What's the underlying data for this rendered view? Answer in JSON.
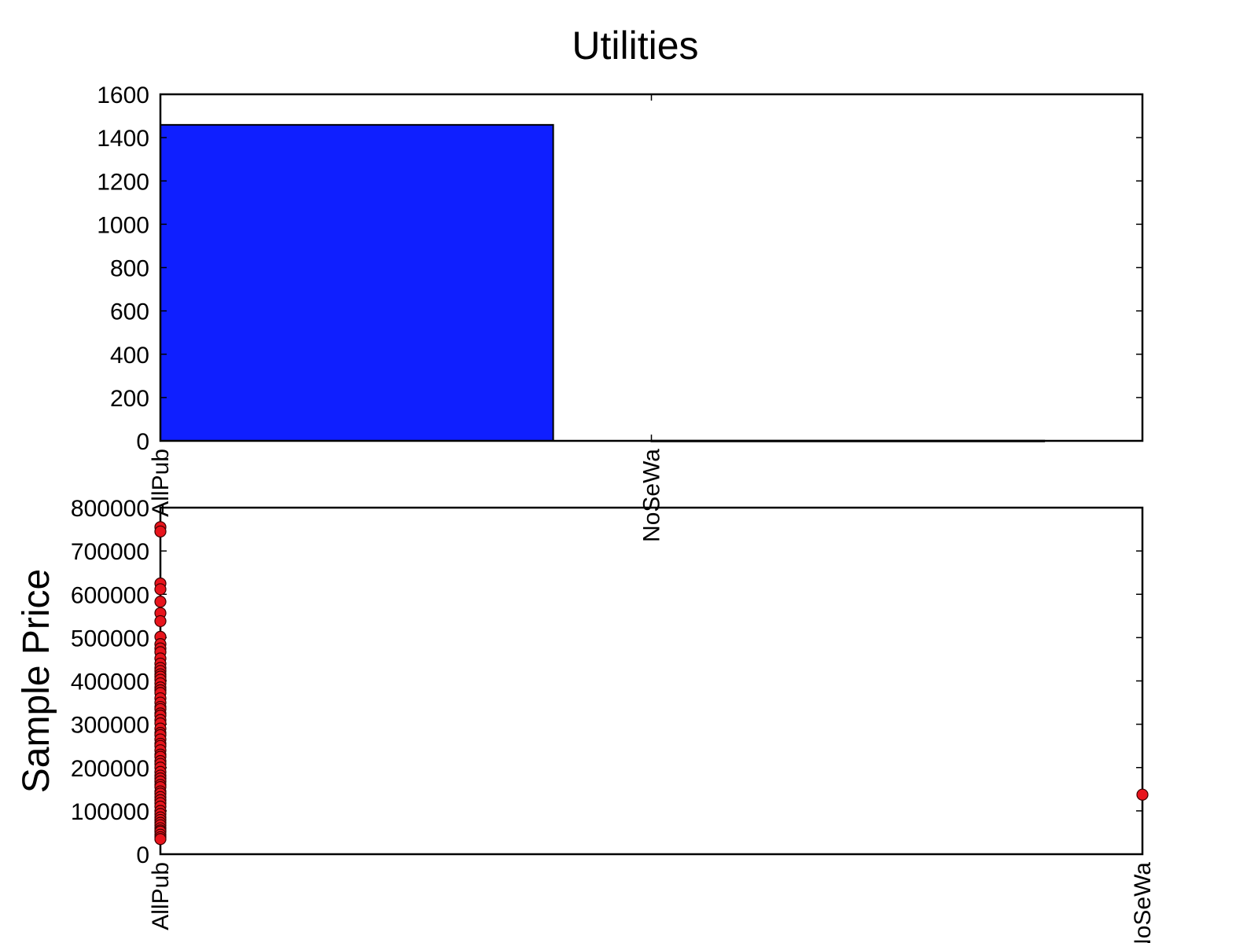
{
  "chart_data": [
    {
      "type": "bar",
      "title": "Utilities",
      "xlabel": "",
      "ylabel": "",
      "categories": [
        "AllPub",
        "NoSeWa"
      ],
      "values": [
        1459,
        1
      ],
      "ylim": [
        0,
        1600
      ],
      "yticks": [
        "0",
        "200",
        "400",
        "600",
        "800",
        "1000",
        "1200",
        "1400",
        "1600"
      ],
      "bar_color": "#0f1fff",
      "grid": false
    },
    {
      "type": "scatter",
      "title": "",
      "xlabel": "",
      "ylabel": "Sample Price",
      "categories": [
        "AllPub",
        "NoSeWa"
      ],
      "ylim": [
        0,
        800000
      ],
      "yticks": [
        "0",
        "100000",
        "200000",
        "300000",
        "400000",
        "500000",
        "600000",
        "700000",
        "800000"
      ],
      "point_color": "#e8141c",
      "grid": false,
      "series": [
        {
          "category": "AllPub",
          "values": [
            755000,
            745000,
            625000,
            611657,
            582933,
            556581,
            538000,
            501837,
            485000,
            475000,
            466500,
            451950,
            440000,
            430000,
            423000,
            415298,
            410000,
            402861,
            394432,
            385000,
            378500,
            372402,
            360000,
            350000,
            340000,
            335000,
            325000,
            319900,
            310000,
            302000,
            290000,
            280000,
            275000,
            265000,
            255000,
            250000,
            240000,
            230000,
            225000,
            215000,
            208500,
            200000,
            190000,
            181500,
            175000,
            168000,
            160000,
            155000,
            145000,
            140000,
            132000,
            125000,
            118000,
            110000,
            100000,
            93000,
            85000,
            79000,
            72500,
            67000,
            60000,
            55000,
            52000,
            45000,
            39300,
            34900
          ]
        },
        {
          "category": "NoSeWa",
          "values": [
            137500
          ]
        }
      ]
    }
  ]
}
